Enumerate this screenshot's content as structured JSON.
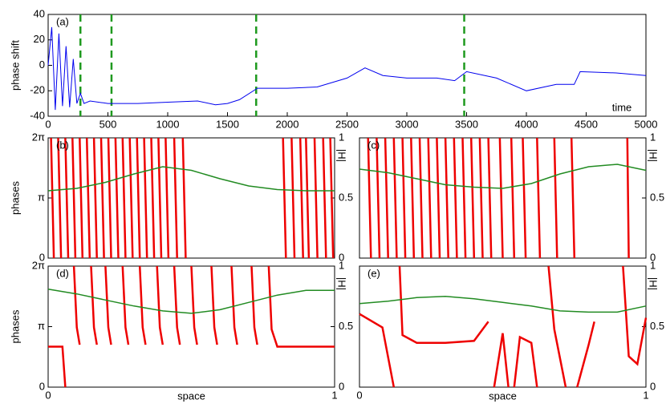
{
  "chart_data": [
    {
      "type": "line",
      "label": "(a)",
      "y_label": "phase shift",
      "x_label": "time",
      "xlim": [
        0,
        5000
      ],
      "xticks": [
        0,
        500,
        1000,
        1500,
        2000,
        2500,
        3000,
        3500,
        4000,
        4500,
        5000
      ],
      "ylim": [
        -40,
        40
      ],
      "yticks": [
        -40,
        -20,
        0,
        20,
        40
      ],
      "vlines": {
        "color": "#1f9a1f",
        "x": [
          270,
          530,
          1740,
          3480
        ]
      },
      "series": [
        {
          "color": "#0000ee",
          "x": [
            0,
            30,
            60,
            90,
            120,
            150,
            180,
            210,
            240,
            270,
            300,
            350,
            500,
            750,
            1000,
            1250,
            1400,
            1500,
            1600,
            1750,
            2000,
            2250,
            2500,
            2650,
            2800,
            3000,
            3250,
            3400,
            3500,
            3750,
            4000,
            4250,
            4400,
            4450,
            4750,
            5000
          ],
          "values": [
            0,
            30,
            -35,
            25,
            -32,
            15,
            -33,
            5,
            -30,
            -22,
            -30,
            -28,
            -30,
            -30,
            -29,
            -28,
            -31,
            -30,
            -27,
            -18,
            -18,
            -17,
            -10,
            -2,
            -8,
            -10,
            -10,
            -12,
            -5,
            -10,
            -20,
            -15,
            -15,
            -5,
            -6,
            -8
          ]
        }
      ]
    },
    {
      "type": "line",
      "label": "(b)",
      "y_label": "phases",
      "y2_label": "|H|",
      "xlim": [
        0,
        1
      ],
      "ylim": [
        0,
        6.2832
      ],
      "yticks": [
        0,
        {
          "value": 3.1416,
          "label": "π"
        },
        {
          "value": 6.2832,
          "label": "2π"
        }
      ],
      "y2lim": [
        0,
        1
      ],
      "y2ticks": [
        0,
        0.5,
        1
      ],
      "series": [
        {
          "color": "#ee0000",
          "x": [
            0.01,
            0.02,
            0.02,
            0.035,
            0.045,
            0.045,
            0.06,
            0.07,
            0.07,
            0.085,
            0.095,
            0.095,
            0.11,
            0.12,
            0.12,
            0.135,
            0.145,
            0.145,
            0.16,
            0.17,
            0.17,
            0.185,
            0.195,
            0.195,
            0.21,
            0.22,
            0.22,
            0.235,
            0.245,
            0.245,
            0.26,
            0.27,
            0.27,
            0.285,
            0.295,
            0.295,
            0.31,
            0.32,
            0.32,
            0.335,
            0.345,
            0.345,
            0.36,
            0.37,
            0.37,
            0.385,
            0.395,
            0.395,
            0.41,
            0.42,
            0.42,
            0.44,
            0.45,
            0.45,
            0.47,
            0.48,
            0.48,
            0.82,
            0.83,
            0.83,
            0.85,
            0.86,
            0.86,
            0.88,
            0.89,
            0.89,
            0.9,
            0.91,
            0.91,
            0.93,
            0.94,
            0.94,
            0.96,
            0.97,
            0.97,
            0.985,
            0.995,
            0.995
          ],
          "values": [
            6.28,
            0,
            null,
            6.28,
            0,
            null,
            6.28,
            0,
            null,
            6.28,
            0,
            null,
            6.28,
            0,
            null,
            6.28,
            0,
            null,
            6.28,
            0,
            null,
            6.28,
            0,
            null,
            6.28,
            0,
            null,
            6.28,
            0,
            null,
            6.28,
            0,
            null,
            6.28,
            0,
            null,
            6.28,
            0,
            null,
            6.28,
            0,
            null,
            6.28,
            0,
            null,
            6.28,
            0,
            null,
            6.28,
            0,
            null,
            6.28,
            0,
            null,
            6.28,
            0,
            null,
            6.28,
            0,
            null,
            6.28,
            0,
            null,
            6.28,
            0,
            null,
            6.28,
            0,
            null,
            6.28,
            0,
            null,
            6.28,
            0,
            null,
            6.28,
            0,
            null
          ]
        },
        {
          "color": "#228b22",
          "axis": "y2",
          "x": [
            0,
            0.1,
            0.2,
            0.3,
            0.4,
            0.5,
            0.6,
            0.7,
            0.8,
            0.9,
            1
          ],
          "values": [
            0.56,
            0.58,
            0.63,
            0.7,
            0.76,
            0.73,
            0.66,
            0.6,
            0.57,
            0.56,
            0.56
          ]
        }
      ]
    },
    {
      "type": "line",
      "label": "(c)",
      "y2_label": "|H|",
      "xlim": [
        0,
        1
      ],
      "ylim": [
        0,
        6.2832
      ],
      "y2lim": [
        0,
        1
      ],
      "y2ticks": [
        0,
        0.5,
        1
      ],
      "series": [
        {
          "color": "#ee0000",
          "x": [
            0.03,
            0.04,
            0.04,
            0.06,
            0.07,
            0.07,
            0.09,
            0.1,
            0.1,
            0.12,
            0.13,
            0.13,
            0.15,
            0.16,
            0.16,
            0.18,
            0.19,
            0.19,
            0.21,
            0.22,
            0.22,
            0.24,
            0.25,
            0.25,
            0.27,
            0.28,
            0.28,
            0.3,
            0.31,
            0.31,
            0.33,
            0.34,
            0.34,
            0.36,
            0.37,
            0.37,
            0.39,
            0.4,
            0.4,
            0.42,
            0.43,
            0.43,
            0.45,
            0.46,
            0.46,
            0.49,
            0.5,
            0.5,
            0.53,
            0.54,
            0.54,
            0.57,
            0.58,
            0.58,
            0.62,
            0.63,
            0.63,
            0.68,
            0.69,
            0.69,
            0.74,
            0.75,
            0.75,
            0.935,
            0.94,
            0.94
          ],
          "values": [
            6.28,
            0,
            null,
            6.28,
            0,
            null,
            6.28,
            0,
            null,
            6.28,
            0,
            null,
            6.28,
            0,
            null,
            6.28,
            0,
            null,
            6.28,
            0,
            null,
            6.28,
            0,
            null,
            6.28,
            0,
            null,
            6.28,
            0,
            null,
            6.28,
            0,
            null,
            6.28,
            0,
            null,
            6.28,
            0,
            null,
            6.28,
            0,
            null,
            6.28,
            0,
            null,
            6.28,
            0,
            null,
            6.28,
            0,
            null,
            6.28,
            0,
            null,
            6.28,
            0,
            null,
            6.28,
            0,
            null,
            6.28,
            0,
            null,
            6.28,
            0,
            null
          ]
        },
        {
          "color": "#228b22",
          "axis": "y2",
          "x": [
            0,
            0.1,
            0.2,
            0.3,
            0.4,
            0.5,
            0.6,
            0.7,
            0.8,
            0.9,
            1
          ],
          "values": [
            0.74,
            0.71,
            0.66,
            0.61,
            0.59,
            0.58,
            0.62,
            0.7,
            0.76,
            0.78,
            0.73
          ]
        }
      ]
    },
    {
      "type": "line",
      "label": "(d)",
      "y_label": "phases",
      "y2_label": "|H|",
      "x_label": "space",
      "xlim": [
        0,
        1
      ],
      "xticks": [
        0,
        1
      ],
      "ylim": [
        0,
        6.2832
      ],
      "yticks": [
        0,
        {
          "value": 3.1416,
          "label": "π"
        },
        {
          "value": 6.2832,
          "label": "2π"
        }
      ],
      "y2lim": [
        0,
        1
      ],
      "y2ticks": [
        0,
        0.5,
        1
      ],
      "series": [
        {
          "color": "#ee0000",
          "x": [
            0,
            0.05,
            0.06,
            0.06,
            0.09,
            0.1,
            0.11,
            0.11,
            0.15,
            0.16,
            0.17,
            0.17,
            0.2,
            0.21,
            0.22,
            0.22,
            0.26,
            0.27,
            0.28,
            0.28,
            0.32,
            0.33,
            0.34,
            0.34,
            0.38,
            0.39,
            0.4,
            0.4,
            0.44,
            0.45,
            0.46,
            0.46,
            0.5,
            0.51,
            0.52,
            0.52,
            0.57,
            0.58,
            0.59,
            0.59,
            0.64,
            0.65,
            0.66,
            0.66,
            0.71,
            0.72,
            0.73,
            0.73,
            0.77,
            0.78,
            0.8,
            1
          ],
          "values": [
            2.1,
            2.1,
            0,
            null,
            6.28,
            3.1,
            2.2,
            null,
            6.28,
            3.1,
            2.2,
            null,
            6.28,
            3.1,
            2.2,
            null,
            6.28,
            3.1,
            2.2,
            null,
            6.28,
            3.1,
            2.2,
            null,
            6.28,
            3.1,
            2.2,
            null,
            6.28,
            3.1,
            2.2,
            null,
            6.28,
            3.1,
            2.2,
            null,
            6.28,
            3.1,
            2.2,
            null,
            6.28,
            3.1,
            2.2,
            null,
            6.28,
            3.1,
            2.2,
            null,
            6.28,
            3.0,
            2.1,
            2.1
          ]
        },
        {
          "color": "#228b22",
          "axis": "y2",
          "x": [
            0,
            0.1,
            0.2,
            0.3,
            0.4,
            0.5,
            0.6,
            0.7,
            0.8,
            0.9,
            1
          ],
          "values": [
            0.81,
            0.77,
            0.72,
            0.67,
            0.63,
            0.61,
            0.64,
            0.7,
            0.76,
            0.8,
            0.8
          ]
        }
      ]
    },
    {
      "type": "line",
      "label": "(e)",
      "y2_label": "|H|",
      "x_label": "space",
      "xlim": [
        0,
        1
      ],
      "xticks": [
        0,
        1
      ],
      "ylim": [
        0,
        6.2832
      ],
      "y2lim": [
        0,
        1
      ],
      "y2ticks": [
        0,
        0.5,
        1
      ],
      "series": [
        {
          "color": "#ee0000",
          "x": [
            0,
            0.08,
            0.12,
            0.12,
            0.14,
            0.15,
            0.2,
            0.3,
            0.4,
            0.45,
            0.45,
            0.47,
            0.5,
            0.52,
            0.52,
            0.54,
            0.56,
            0.6,
            0.62,
            0.62,
            0.66,
            0.68,
            0.72,
            0.72,
            0.76,
            0.8,
            0.82,
            0.82,
            0.92,
            0.94,
            0.97,
            1
          ],
          "values": [
            3.8,
            3.1,
            0,
            null,
            6.28,
            2.7,
            2.3,
            2.3,
            2.4,
            3.4,
            null,
            0,
            2.8,
            0,
            null,
            0,
            2.6,
            2.3,
            0,
            null,
            6.28,
            3.0,
            0,
            null,
            0,
            2.2,
            3.4,
            null,
            6.28,
            1.6,
            1.2,
            3.6
          ]
        },
        {
          "color": "#228b22",
          "axis": "y2",
          "x": [
            0,
            0.1,
            0.2,
            0.3,
            0.4,
            0.5,
            0.6,
            0.7,
            0.8,
            0.9,
            1
          ],
          "values": [
            0.69,
            0.71,
            0.74,
            0.75,
            0.73,
            0.7,
            0.67,
            0.63,
            0.62,
            0.62,
            0.67
          ]
        }
      ]
    }
  ]
}
